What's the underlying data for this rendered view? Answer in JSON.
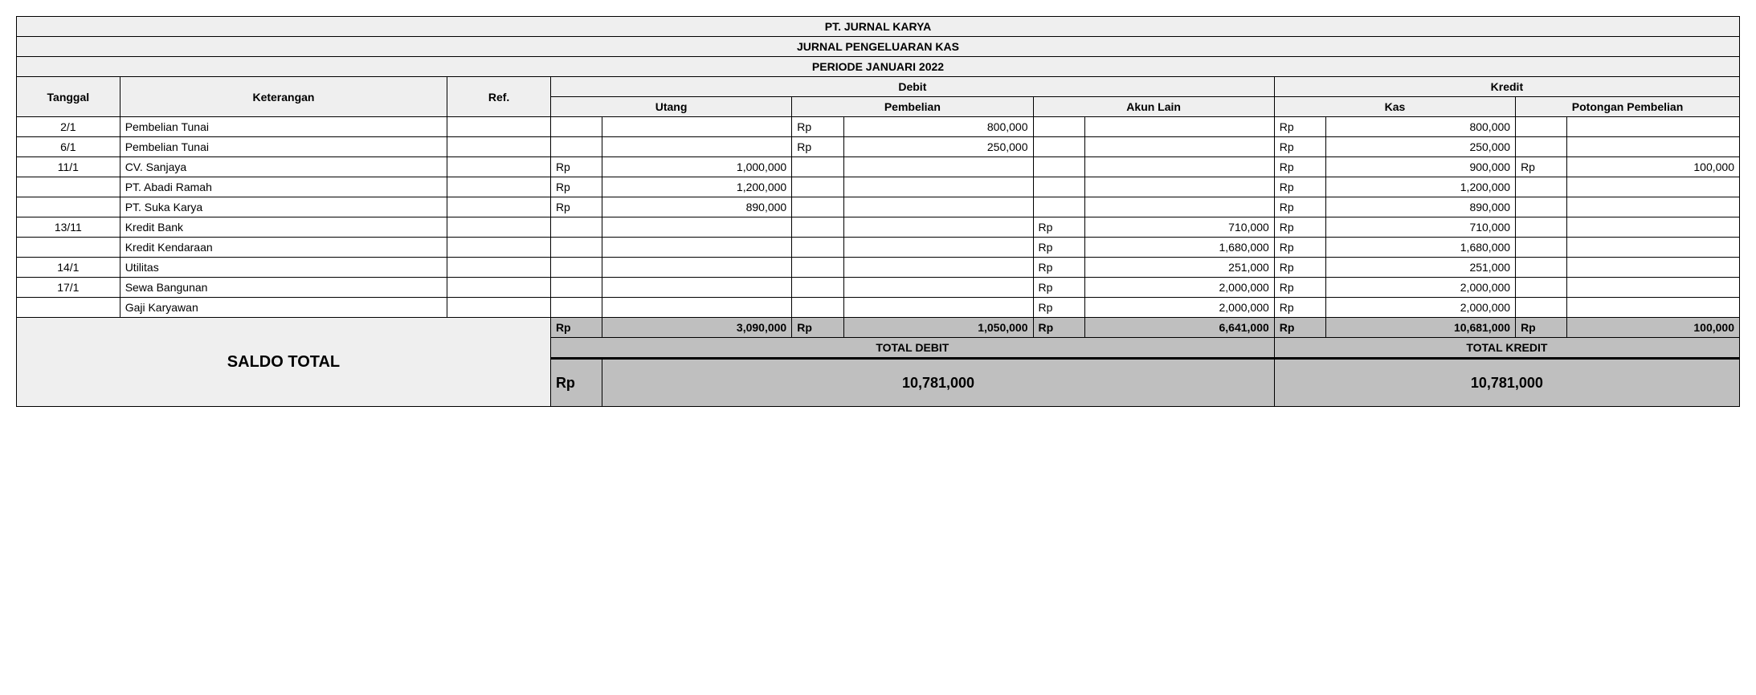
{
  "header": {
    "company": "PT. JURNAL KARYA",
    "title": "JURNAL PENGELUARAN KAS",
    "period": "PERIODE JANUARI 2022"
  },
  "columns": {
    "tanggal": "Tanggal",
    "keterangan": "Keterangan",
    "ref": "Ref.",
    "debit": "Debit",
    "kredit": "Kredit",
    "utang": "Utang",
    "pembelian": "Pembelian",
    "akunlain": "Akun Lain",
    "kas": "Kas",
    "potongan": "Potongan Pembelian"
  },
  "rp": "Rp",
  "rows": [
    {
      "tgl": "2/1",
      "ket": "Pembelian Tunai",
      "ref": "",
      "utang": "",
      "pembelian": "800,000",
      "akun": "",
      "kas": "800,000",
      "pot": ""
    },
    {
      "tgl": "6/1",
      "ket": "Pembelian Tunai",
      "ref": "",
      "utang": "",
      "pembelian": "250,000",
      "akun": "",
      "kas": "250,000",
      "pot": ""
    },
    {
      "tgl": "11/1",
      "ket": "CV. Sanjaya",
      "ref": "",
      "utang": "1,000,000",
      "pembelian": "",
      "akun": "",
      "kas": "900,000",
      "pot": "100,000"
    },
    {
      "tgl": "",
      "ket": "PT. Abadi Ramah",
      "ref": "",
      "utang": "1,200,000",
      "pembelian": "",
      "akun": "",
      "kas": "1,200,000",
      "pot": ""
    },
    {
      "tgl": "",
      "ket": "PT. Suka Karya",
      "ref": "",
      "utang": "890,000",
      "pembelian": "",
      "akun": "",
      "kas": "890,000",
      "pot": ""
    },
    {
      "tgl": "13/11",
      "ket": "Kredit Bank",
      "ref": "",
      "utang": "",
      "pembelian": "",
      "akun": "710,000",
      "kas": "710,000",
      "pot": ""
    },
    {
      "tgl": "",
      "ket": "Kredit Kendaraan",
      "ref": "",
      "utang": "",
      "pembelian": "",
      "akun": "1,680,000",
      "kas": "1,680,000",
      "pot": ""
    },
    {
      "tgl": "14/1",
      "ket": "Utilitas",
      "ref": "",
      "utang": "",
      "pembelian": "",
      "akun": "251,000",
      "kas": "251,000",
      "pot": ""
    },
    {
      "tgl": "17/1",
      "ket": "Sewa Bangunan",
      "ref": "",
      "utang": "",
      "pembelian": "",
      "akun": "2,000,000",
      "kas": "2,000,000",
      "pot": ""
    },
    {
      "tgl": "",
      "ket": "Gaji Karyawan",
      "ref": "",
      "utang": "",
      "pembelian": "",
      "akun": "2,000,000",
      "kas": "2,000,000",
      "pot": ""
    }
  ],
  "subtotals": {
    "utang": "3,090,000",
    "pembelian": "1,050,000",
    "akun": "6,641,000",
    "kas": "10,681,000",
    "pot": "100,000"
  },
  "labels": {
    "totaldebit": "TOTAL DEBIT",
    "totalkredit": "TOTAL KREDIT",
    "saldototal": "SALDO TOTAL"
  },
  "totals": {
    "debit": "10,781,000",
    "kredit": "10,781,000"
  },
  "style": {
    "header_bg": "#efefef",
    "subtotal_bg": "#bfbfbf",
    "border_color": "#000000",
    "font_family": "Arial",
    "base_fontsize": 14,
    "saldo_fontsize": 20,
    "total_fontsize": 18
  },
  "col_widths_pct": {
    "tanggal": 6,
    "keterangan": 19,
    "ref": 6,
    "currency": 3,
    "utang_val": 11,
    "pembelian_val": 11,
    "akun_val": 11,
    "kas_val": 11,
    "pot_val": 11
  }
}
